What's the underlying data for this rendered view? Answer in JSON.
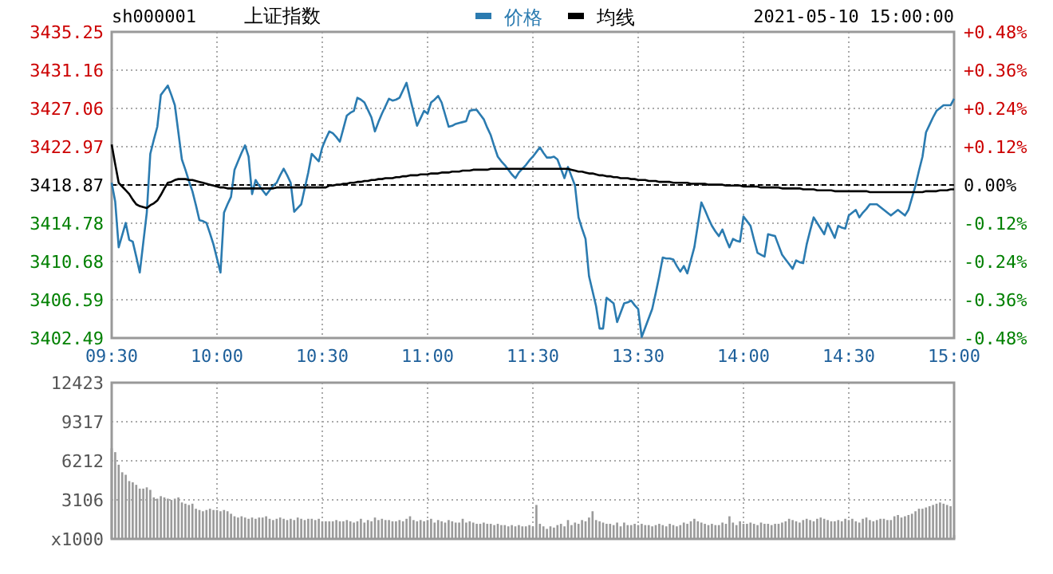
{
  "chart_data": [
    {
      "type": "line",
      "title": "上证指数",
      "annotations": [
        "sh000001",
        "2021-05-10 15:00:00"
      ],
      "categories": [
        "09:30",
        null,
        null,
        null,
        null,
        null,
        null,
        null,
        null,
        null,
        null,
        null,
        null,
        null,
        null,
        null,
        null,
        null,
        null,
        null,
        null,
        null,
        null,
        null,
        null,
        null,
        null,
        null,
        null,
        null,
        "10:00",
        null,
        null,
        null,
        null,
        null,
        null,
        null,
        null,
        null,
        null,
        null,
        null,
        null,
        null,
        null,
        null,
        null,
        null,
        null,
        null,
        null,
        null,
        null,
        null,
        null,
        null,
        null,
        null,
        null,
        "10:30",
        null,
        null,
        null,
        null,
        null,
        null,
        null,
        null,
        null,
        null,
        null,
        null,
        null,
        null,
        null,
        null,
        null,
        null,
        null,
        null,
        null,
        null,
        null,
        null,
        null,
        null,
        null,
        null,
        null,
        "11:00",
        null,
        null,
        null,
        null,
        null,
        null,
        null,
        null,
        null,
        null,
        null,
        null,
        null,
        null,
        null,
        null,
        null,
        null,
        null,
        null,
        null,
        null,
        null,
        null,
        null,
        null,
        null,
        null,
        null,
        "11:30",
        null,
        null,
        null,
        null,
        null,
        null,
        null,
        null,
        null,
        null,
        null,
        null,
        null,
        null,
        null,
        null,
        null,
        null,
        null,
        null,
        null,
        null,
        null,
        null,
        null,
        null,
        null,
        null,
        null,
        "13:30",
        null,
        null,
        null,
        null,
        null,
        null,
        null,
        null,
        null,
        null,
        null,
        null,
        null,
        null,
        null,
        null,
        null,
        null,
        null,
        null,
        null,
        null,
        null,
        null,
        null,
        null,
        null,
        null,
        null,
        "14:00",
        null,
        null,
        null,
        null,
        null,
        null,
        null,
        null,
        null,
        null,
        null,
        null,
        null,
        null,
        null,
        null,
        null,
        null,
        null,
        null,
        null,
        null,
        null,
        null,
        null,
        null,
        null,
        null,
        null,
        "14:30",
        null,
        null,
        null,
        null,
        null,
        null,
        null,
        null,
        null,
        null,
        null,
        null,
        null,
        null,
        null,
        null,
        null,
        null,
        null,
        null,
        null,
        null,
        null,
        null,
        null,
        null,
        null,
        null,
        null,
        "15:00"
      ],
      "ylim": [
        3402.49,
        3435.25
      ],
      "yticks": [
        3402.49,
        3406.59,
        3410.68,
        3414.78,
        3418.87,
        3422.97,
        3427.06,
        3431.16,
        3435.25
      ],
      "y2lim": [
        -0.48,
        0.48
      ],
      "y2ticks": [
        {
          "value": -0.48,
          "label": "-0.48%"
        },
        {
          "value": -0.36,
          "label": "-0.36%"
        },
        {
          "value": -0.24,
          "label": "-0.24%"
        },
        {
          "value": -0.12,
          "label": "-0.12%"
        },
        {
          "value": 0,
          "label": "0.00%"
        },
        {
          "value": 0.12,
          "label": "+0.12%"
        },
        {
          "value": 0.24,
          "label": "+0.24%"
        },
        {
          "value": 0.36,
          "label": "+0.36%"
        },
        {
          "value": 0.48,
          "label": "+0.48%"
        }
      ],
      "grid": true,
      "legend": "top",
      "ref_lines": [
        {
          "axis": "y",
          "value": 3418.87,
          "color": "#000000",
          "line_style": "dashed"
        }
      ],
      "series": [
        {
          "name": "价格",
          "color": "#2b7bb0",
          "values": [
            3419.1,
            3417.1,
            3412.2,
            3413.5,
            3414.8,
            3413,
            3412.8,
            3411.2,
            3409.5,
            3412.7,
            3415.9,
            3422.2,
            3423.7,
            3425.1,
            3428.5,
            3429,
            3429.5,
            3428.5,
            3427.4,
            3424.5,
            3421.6,
            3420.5,
            3419.3,
            3418.2,
            3416.7,
            3415.1,
            3415,
            3414.8,
            3413.7,
            3412.5,
            3411,
            3409.5,
            3415.9,
            3416.8,
            3417.6,
            3420.5,
            3421.4,
            3422.3,
            3423.1,
            3421.9,
            3417.9,
            3419.4,
            3418.8,
            3418.3,
            3417.8,
            3418.3,
            3418.8,
            3419.1,
            3419.9,
            3420.6,
            3419.9,
            3419.1,
            3416,
            3416.4,
            3416.8,
            3418.5,
            3420.2,
            3422.2,
            3421.8,
            3421.4,
            3422.9,
            3423.8,
            3424.6,
            3424.4,
            3424,
            3423.5,
            3424.9,
            3426.3,
            3426.6,
            3426.8,
            3428.2,
            3428,
            3427.7,
            3426.9,
            3426.1,
            3424.6,
            3425.6,
            3426.5,
            3427.3,
            3428.1,
            3427.9,
            3428,
            3428.2,
            3429,
            3429.8,
            3428.2,
            3426.7,
            3425.2,
            3426,
            3426.8,
            3426.5,
            3427.7,
            3428,
            3428.4,
            3427.7,
            3426.4,
            3425.1,
            3425.2,
            3425.4,
            3425.5,
            3425.6,
            3425.7,
            3426.8,
            3426.9,
            3426.9,
            3426.4,
            3425.9,
            3425,
            3424.2,
            3423,
            3421.9,
            3421.4,
            3421,
            3420.5,
            3420,
            3419.6,
            3420.2,
            3420.6,
            3421,
            3421.5,
            3421.9,
            3422.4,
            3422.9,
            3422.3,
            3421.8,
            3421.8,
            3421.9,
            3421.6,
            3420.6,
            3419.6,
            3420.8,
            3419.8,
            3418.8,
            3415.4,
            3414.2,
            3413.1,
            3409.1,
            3407.5,
            3405.9,
            3403.5,
            3403.5,
            3406.8,
            3406.5,
            3406.2,
            3404.2,
            3405.2,
            3406.2,
            3406.3,
            3406.5,
            3406,
            3405.6,
            3402.6,
            3403.6,
            3404.6,
            3405.6,
            3407.3,
            3409.1,
            3411.1,
            3411,
            3411,
            3410.9,
            3410.2,
            3409.6,
            3410.2,
            3409.4,
            3410.8,
            3412.2,
            3414.6,
            3417,
            3416.2,
            3415.3,
            3414.5,
            3413.9,
            3413.4,
            3414.1,
            3413.1,
            3412.2,
            3413.1,
            3412.9,
            3412.8,
            3415.5,
            3415,
            3414.5,
            3413,
            3411.6,
            3411.4,
            3411.2,
            3413.6,
            3413.5,
            3413.4,
            3412.4,
            3411.4,
            3410.9,
            3410.4,
            3409.9,
            3410.8,
            3410.6,
            3410.5,
            3412.5,
            3414,
            3415.4,
            3414.8,
            3414.2,
            3413.6,
            3414.8,
            3414,
            3413.2,
            3414.5,
            3414.3,
            3414.2,
            3415.6,
            3415.9,
            3416.2,
            3415.4,
            3415.9,
            3416.3,
            3416.8,
            3416.8,
            3416.8,
            3416.5,
            3416.2,
            3415.9,
            3415.6,
            3415.9,
            3416.2,
            3415.9,
            3415.6,
            3416.2,
            3417.5,
            3418.8,
            3420.4,
            3421.9,
            3424.5,
            3425.3,
            3426.1,
            3426.8,
            3427.1,
            3427.4,
            3427.4,
            3427.4,
            3428.1
          ]
        },
        {
          "name": "均线",
          "color": "#000000",
          "values": [
            3423.2,
            3421.1,
            3419.1,
            3418.7,
            3418.3,
            3417.9,
            3417.3,
            3416.8,
            3416.6,
            3416.5,
            3416.4,
            3416.7,
            3416.9,
            3417.2,
            3417.8,
            3418.5,
            3419.1,
            3419.2,
            3419.4,
            3419.5,
            3419.5,
            3419.5,
            3419.4,
            3419.4,
            3419.3,
            3419.2,
            3419.1,
            3419,
            3418.9,
            3418.8,
            3418.7,
            3418.6,
            3418.6,
            3418.5,
            3418.5,
            3418.5,
            3418.5,
            3418.5,
            3418.5,
            3418.5,
            3418.5,
            3418.5,
            3418.5,
            3418.5,
            3418.5,
            3418.5,
            3418.5,
            3418.6,
            3418.6,
            3418.6,
            3418.6,
            3418.6,
            3418.6,
            3418.6,
            3418.6,
            3418.6,
            3418.6,
            3418.6,
            3418.6,
            3418.6,
            3418.6,
            3418.6,
            3418.8,
            3418.8,
            3418.9,
            3418.9,
            3419,
            3419,
            3419.1,
            3419.1,
            3419.2,
            3419.2,
            3419.3,
            3419.3,
            3419.4,
            3419.4,
            3419.5,
            3419.5,
            3419.6,
            3419.6,
            3419.6,
            3419.7,
            3419.7,
            3419.8,
            3419.8,
            3419.9,
            3419.9,
            3419.9,
            3420,
            3420,
            3420,
            3420.1,
            3420.1,
            3420.1,
            3420.2,
            3420.2,
            3420.2,
            3420.3,
            3420.3,
            3420.3,
            3420.4,
            3420.4,
            3420.4,
            3420.5,
            3420.5,
            3420.5,
            3420.5,
            3420.5,
            3420.6,
            3420.6,
            3420.6,
            3420.6,
            3420.6,
            3420.6,
            3420.6,
            3420.6,
            3420.6,
            3420.6,
            3420.6,
            3420.6,
            3420.6,
            3420.6,
            3420.6,
            3420.6,
            3420.6,
            3420.6,
            3420.6,
            3420.6,
            3420.6,
            3420.6,
            3420.6,
            3420.5,
            3420.4,
            3420.3,
            3420.3,
            3420.2,
            3420.1,
            3420.1,
            3420,
            3419.9,
            3419.9,
            3419.8,
            3419.8,
            3419.7,
            3419.7,
            3419.6,
            3419.6,
            3419.6,
            3419.5,
            3419.5,
            3419.4,
            3419.4,
            3419.4,
            3419.3,
            3419.3,
            3419.3,
            3419.2,
            3419.2,
            3419.2,
            3419.2,
            3419.1,
            3419.1,
            3419.1,
            3419.1,
            3419.1,
            3419,
            3419,
            3419,
            3419,
            3419,
            3418.9,
            3418.9,
            3418.9,
            3418.9,
            3418.9,
            3418.8,
            3418.8,
            3418.8,
            3418.8,
            3418.8,
            3418.7,
            3418.7,
            3418.7,
            3418.7,
            3418.7,
            3418.6,
            3418.6,
            3418.6,
            3418.6,
            3418.6,
            3418.6,
            3418.5,
            3418.5,
            3418.5,
            3418.5,
            3418.5,
            3418.5,
            3418.4,
            3418.4,
            3418.4,
            3418.4,
            3418.3,
            3418.3,
            3418.3,
            3418.3,
            3418.3,
            3418.2,
            3418.2,
            3418.2,
            3418.2,
            3418.2,
            3418.2,
            3418.2,
            3418.2,
            3418.2,
            3418.2,
            3418.1,
            3418.1,
            3418.1,
            3418.1,
            3418.1,
            3418.1,
            3418.1,
            3418.1,
            3418.1,
            3418.1,
            3418.1,
            3418.1,
            3418.1,
            3418.1,
            3418.1,
            3418.1,
            3418.2,
            3418.2,
            3418.2,
            3418.2,
            3418.3,
            3418.3,
            3418.3,
            3418.4,
            3418.4
          ]
        }
      ]
    },
    {
      "type": "bar",
      "color": "#9a9a9a",
      "grid": true,
      "tick_labels": "y",
      "categories": [
        null,
        null,
        null,
        null,
        null,
        null,
        null,
        null,
        null,
        null,
        null,
        null,
        null,
        null,
        null,
        null,
        null,
        null,
        null,
        null,
        null,
        null,
        null,
        null,
        null,
        null,
        null,
        null,
        null,
        null,
        null,
        null,
        null,
        null,
        null,
        null,
        null,
        null,
        null,
        null,
        null,
        null,
        null,
        null,
        null,
        null,
        null,
        null,
        null,
        null,
        null,
        null,
        null,
        null,
        null,
        null,
        null,
        null,
        null,
        null,
        null,
        null,
        null,
        null,
        null,
        null,
        null,
        null,
        null,
        null,
        null,
        null,
        null,
        null,
        null,
        null,
        null,
        null,
        null,
        null,
        null,
        null,
        null,
        null,
        null,
        null,
        null,
        null,
        null,
        null,
        null,
        null,
        null,
        null,
        null,
        null,
        null,
        null,
        null,
        null,
        null,
        null,
        null,
        null,
        null,
        null,
        null,
        null,
        null,
        null,
        null,
        null,
        null,
        null,
        null,
        null,
        null,
        null,
        null,
        null,
        null,
        null,
        null,
        null,
        null,
        null,
        null,
        null,
        null,
        null,
        null,
        null,
        null,
        null,
        null,
        null,
        null,
        null,
        null,
        null,
        null,
        null,
        null,
        null,
        null,
        null,
        null,
        null,
        null,
        null,
        null,
        null,
        null,
        null,
        null,
        null,
        null,
        null,
        null,
        null,
        null,
        null,
        null,
        null,
        null,
        null,
        null,
        null,
        null,
        null,
        null,
        null,
        null,
        null,
        null,
        null,
        null,
        null,
        null,
        null,
        null,
        null,
        null,
        null,
        null,
        null,
        null,
        null,
        null,
        null,
        null,
        null,
        null,
        null,
        null,
        null,
        null,
        null,
        null,
        null,
        null,
        null,
        null,
        null,
        null,
        null,
        null,
        null,
        null,
        null,
        null,
        null,
        null,
        null,
        null,
        null,
        null,
        null,
        null,
        null,
        null,
        null,
        null,
        null,
        null,
        null,
        null,
        null,
        null,
        null,
        null,
        null,
        null,
        null,
        null,
        null,
        null,
        null,
        null,
        null,
        null
      ],
      "ylim": [
        0,
        12423
      ],
      "yticks": [
        {
          "value": 0,
          "label": "x1000"
        },
        3106,
        6212,
        9317,
        12423
      ],
      "values": [
        7200,
        6900,
        5900,
        5300,
        5100,
        4600,
        4500,
        4300,
        4000,
        4000,
        4100,
        3900,
        3300,
        3200,
        3400,
        3300,
        3200,
        3100,
        3200,
        3300,
        2900,
        2800,
        2700,
        2800,
        2400,
        2300,
        2200,
        2300,
        2400,
        2300,
        2300,
        2200,
        2300,
        2200,
        2000,
        1800,
        1700,
        1800,
        1700,
        1600,
        1700,
        1600,
        1700,
        1700,
        1800,
        1600,
        1500,
        1600,
        1700,
        1600,
        1500,
        1600,
        1500,
        1700,
        1600,
        1500,
        1600,
        1600,
        1500,
        1600,
        1400,
        1400,
        1400,
        1400,
        1500,
        1400,
        1400,
        1500,
        1400,
        1300,
        1400,
        1600,
        1300,
        1500,
        1400,
        1700,
        1500,
        1600,
        1500,
        1500,
        1400,
        1400,
        1500,
        1400,
        1600,
        1800,
        1500,
        1400,
        1500,
        1400,
        1500,
        1600,
        1300,
        1500,
        1400,
        1300,
        1500,
        1400,
        1300,
        1300,
        1600,
        1300,
        1400,
        1300,
        1200,
        1200,
        1300,
        1200,
        1200,
        1100,
        1200,
        1100,
        1100,
        1000,
        1100,
        1000,
        1100,
        1000,
        1000,
        1100,
        1000,
        2700,
        1200,
        1000,
        800,
        1000,
        900,
        1100,
        1200,
        1000,
        1500,
        1100,
        1300,
        1200,
        1500,
        1400,
        1700,
        2200,
        1500,
        1400,
        1300,
        1200,
        1200,
        1100,
        1300,
        1000,
        1300,
        1100,
        1100,
        1200,
        1100,
        1200,
        1100,
        1100,
        1000,
        1100,
        1200,
        1100,
        1000,
        1200,
        1100,
        1000,
        1100,
        1300,
        1200,
        1400,
        1600,
        1400,
        1300,
        1200,
        1100,
        1200,
        1100,
        1100,
        1300,
        1200,
        1800,
        1300,
        1100,
        1400,
        1200,
        1200,
        1300,
        1200,
        1100,
        1300,
        1200,
        1200,
        1100,
        1200,
        1200,
        1300,
        1400,
        1600,
        1500,
        1400,
        1300,
        1500,
        1600,
        1500,
        1400,
        1600,
        1700,
        1600,
        1500,
        1400,
        1400,
        1500,
        1400,
        1600,
        1500,
        1600,
        1400,
        1300,
        1600,
        1700,
        1500,
        1400,
        1500,
        1600,
        1600,
        1500,
        1500,
        1800,
        1900,
        1700,
        1800,
        1900,
        2000,
        2200,
        2400,
        2400,
        2500,
        2600,
        2700,
        2800,
        2900,
        2800,
        2700,
        2600,
        300
      ]
    }
  ]
}
